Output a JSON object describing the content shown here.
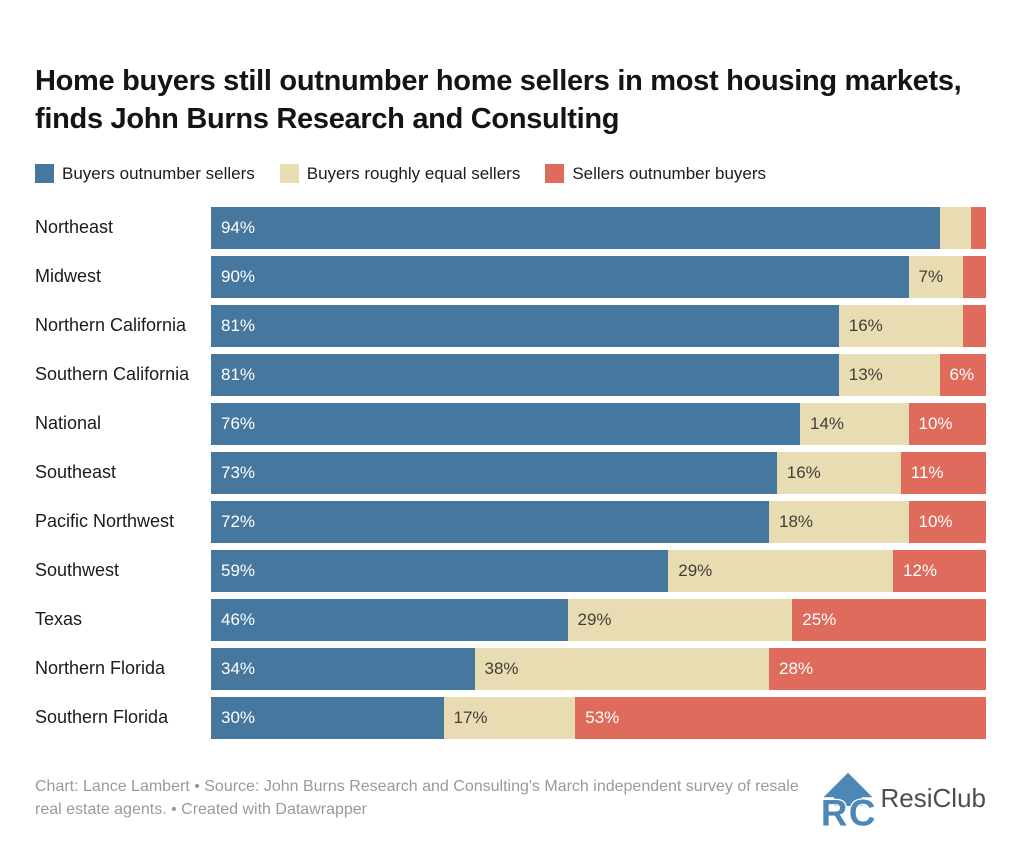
{
  "title": "Home buyers still outnumber home sellers in most housing markets, finds John Burns Research and Consulting",
  "chart_data": {
    "type": "bar",
    "stacked": true,
    "orientation": "horizontal",
    "unit": "%",
    "xlim": [
      0,
      100
    ],
    "grid": false,
    "legend_position": "top",
    "categories": [
      "Northeast",
      "Midwest",
      "Northern California",
      "Southern California",
      "National",
      "Southeast",
      "Pacific Northwest",
      "Southwest",
      "Texas",
      "Northern Florida",
      "Southern Florida"
    ],
    "series": [
      {
        "key": "buyers-outnumber-sellers",
        "name": "Buyers outnumber sellers",
        "color": "#46789f",
        "label_color": "#ffffff",
        "values": [
          94,
          90,
          81,
          81,
          76,
          73,
          72,
          59,
          46,
          34,
          30
        ],
        "labels": [
          "94%",
          "90%",
          "81%",
          "81%",
          "76%",
          "73%",
          "72%",
          "59%",
          "46%",
          "34%",
          "30%"
        ]
      },
      {
        "key": "buyers-roughly-equal-sellers",
        "name": "Buyers roughly equal sellers",
        "color": "#e8dcb3",
        "label_color": "#423e36",
        "values": [
          4,
          7,
          16,
          13,
          14,
          16,
          18,
          29,
          29,
          38,
          17
        ],
        "labels": [
          "",
          "7%",
          "16%",
          "13%",
          "14%",
          "16%",
          "18%",
          "29%",
          "29%",
          "38%",
          "17%"
        ]
      },
      {
        "key": "sellers-outnumber-buyers",
        "name": "Sellers outnumber buyers",
        "color": "#de6b5c",
        "label_color": "#ffffff",
        "values": [
          2,
          3,
          3,
          6,
          10,
          11,
          10,
          12,
          25,
          28,
          53
        ],
        "labels": [
          "",
          "",
          "",
          "6%",
          "10%",
          "11%",
          "10%",
          "12%",
          "25%",
          "28%",
          "53%"
        ]
      }
    ]
  },
  "footer": {
    "credit": "Chart: Lance Lambert • Source: John Burns Research and Consulting's March independent survey of resale real estate agents. • Created with Datawrapper",
    "brand": "ResiClub"
  },
  "colors": {
    "blue": "#46789f",
    "beige": "#e8dcb3",
    "red": "#de6b5c",
    "title_text": "#141414",
    "footer_text": "#9a9a9a",
    "logo_blue": "#4d87b5",
    "logo_text": "#4e4e4e"
  }
}
